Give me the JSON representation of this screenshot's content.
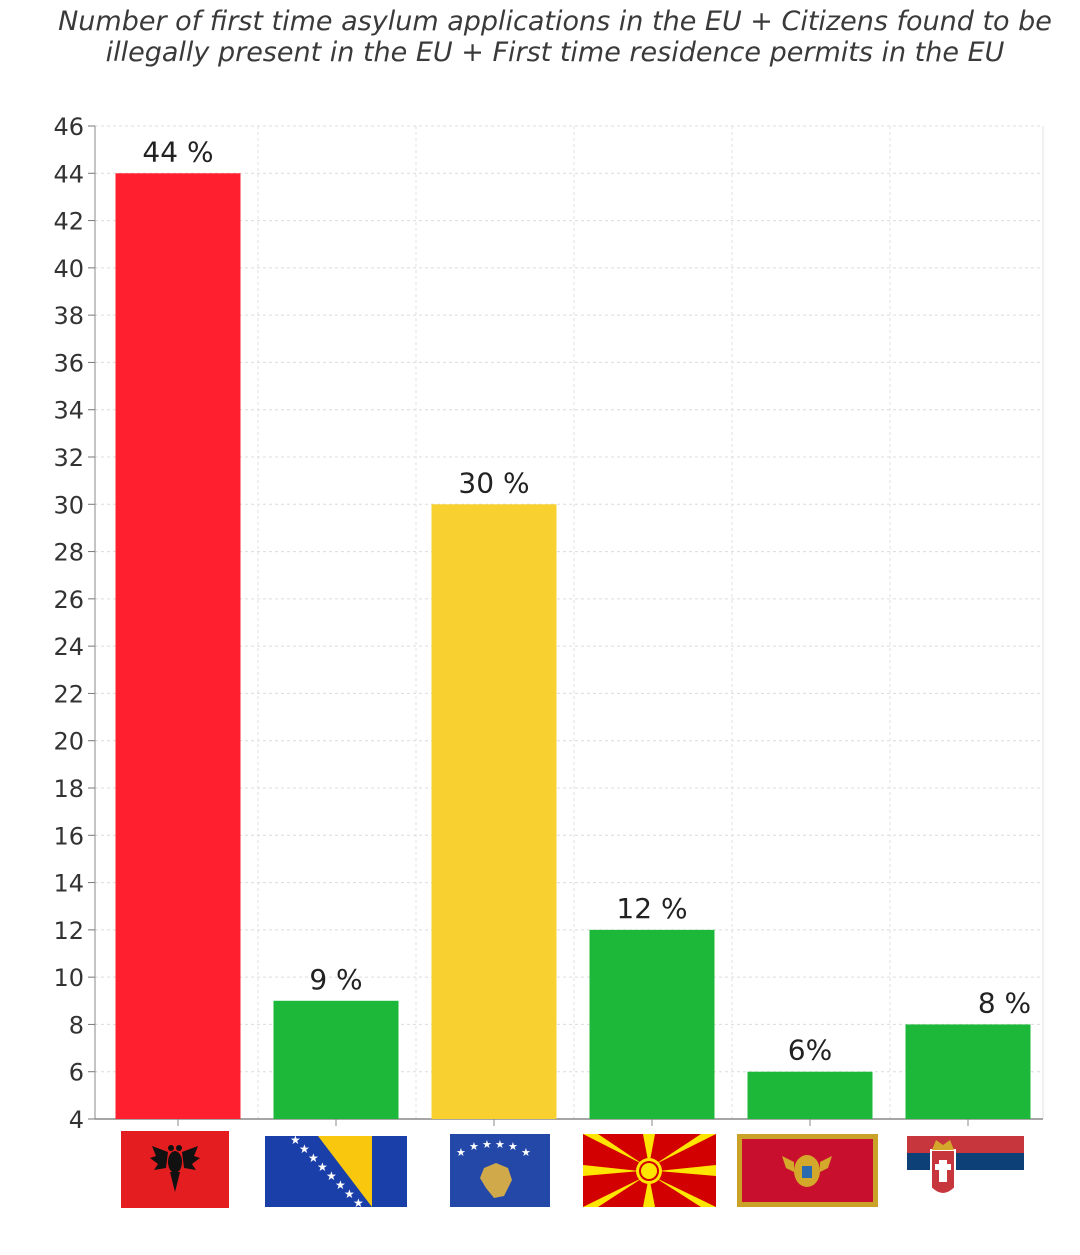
{
  "chart_data": {
    "type": "bar",
    "title_lines": [
      "Number of first time asylum applications in the EU + Citizens found to be",
      "illegally present in the EU + First time residence permits in the EU"
    ],
    "categories": [
      "Albania",
      "Bosnia and Herzegovina",
      "Kosovo",
      "North Macedonia",
      "Montenegro",
      "Serbia"
    ],
    "values": [
      44,
      9,
      30,
      12,
      6,
      8
    ],
    "data_labels": [
      "44 %",
      "9 %",
      "30 %",
      "12 %",
      "6%",
      "8 %"
    ],
    "bar_colors": [
      "#ff1f2e",
      "#1db83a",
      "#f8d030",
      "#1db83a",
      "#1db83a",
      "#1db83a"
    ],
    "ylim": [
      4,
      46
    ],
    "yticks": [
      46,
      44,
      42,
      40,
      38,
      36,
      34,
      32,
      30,
      28,
      26,
      24,
      22,
      20,
      18,
      16,
      14,
      12,
      10,
      8,
      6,
      4
    ],
    "grid": true,
    "xlabel": "",
    "ylabel": ""
  }
}
